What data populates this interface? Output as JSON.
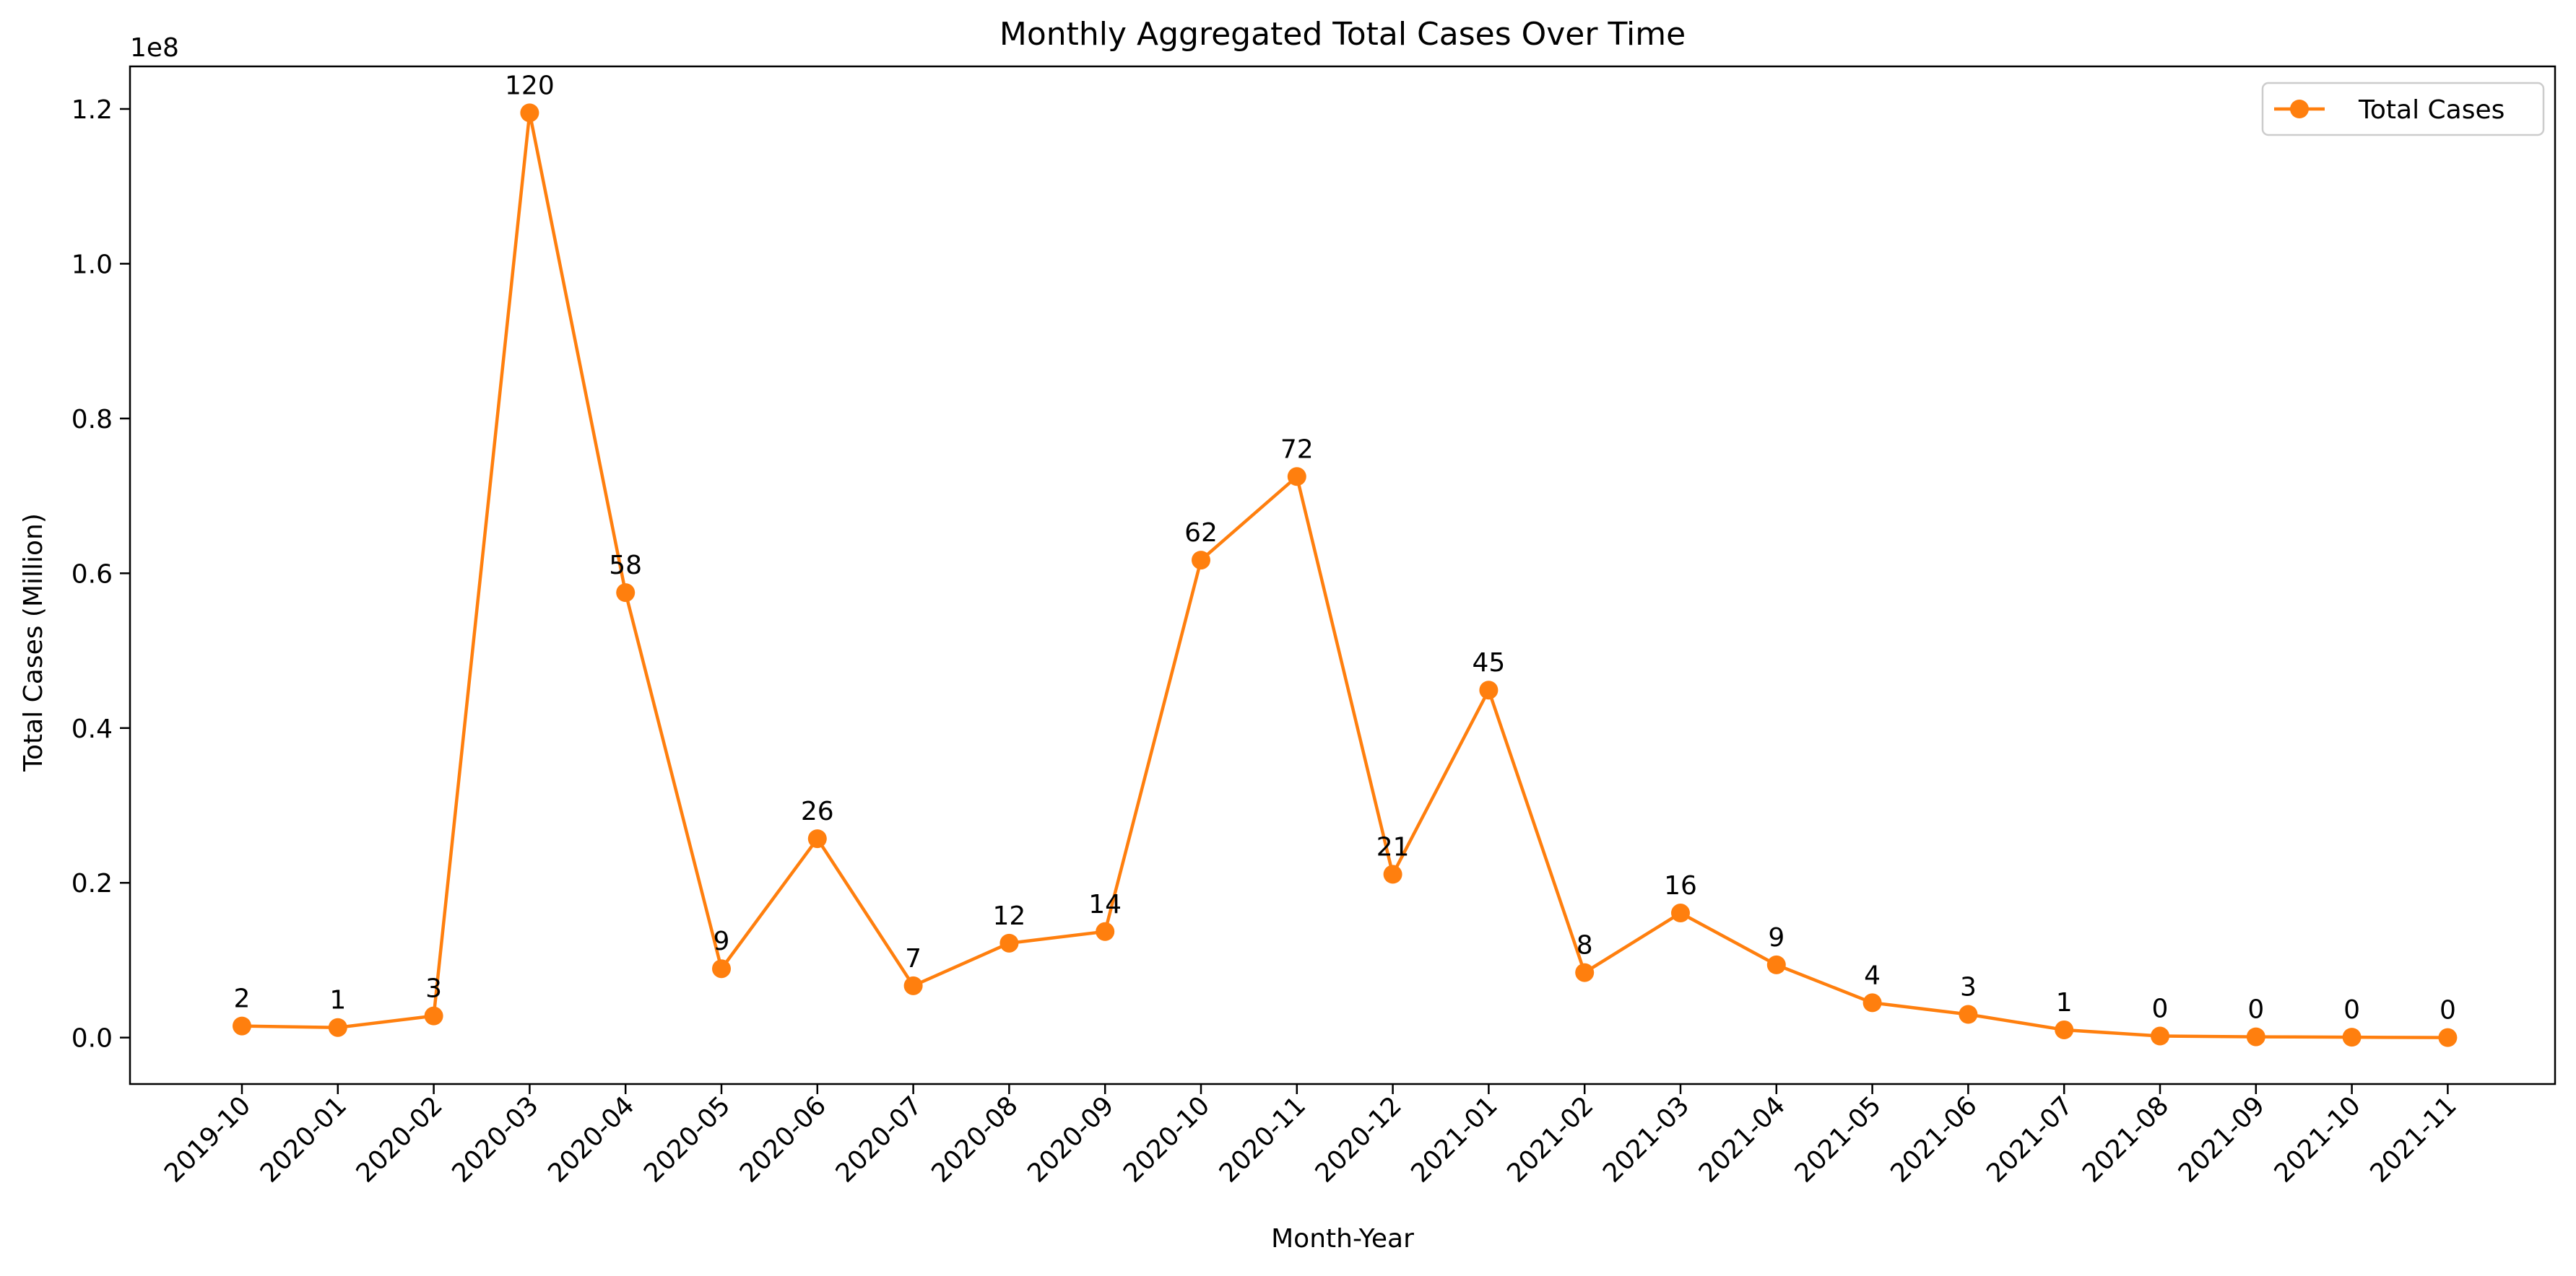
{
  "chart_data": {
    "type": "line",
    "title": "Monthly Aggregated Total Cases Over Time",
    "xlabel": "Month-Year",
    "ylabel": "Total Cases (Million)",
    "y_offset_label": "1e8",
    "categories": [
      "2019-10",
      "2020-01",
      "2020-02",
      "2020-03",
      "2020-04",
      "2020-05",
      "2020-06",
      "2020-07",
      "2020-08",
      "2020-09",
      "2020-10",
      "2020-11",
      "2020-12",
      "2021-01",
      "2021-02",
      "2021-03",
      "2021-04",
      "2021-05",
      "2021-06",
      "2021-07",
      "2021-08",
      "2021-09",
      "2021-10",
      "2021-11"
    ],
    "series": [
      {
        "name": "Total Cases",
        "color": "#ff7f0e",
        "values": [
          1500000,
          1300000,
          2800000,
          119500000,
          57500000,
          8900000,
          25700000,
          6700000,
          12200000,
          13700000,
          61700000,
          72500000,
          21100000,
          44900000,
          8400000,
          16100000,
          9400000,
          4500000,
          3000000,
          1000000,
          200000,
          100000,
          50000,
          0
        ],
        "data_labels": [
          "2",
          "1",
          "3",
          "120",
          "58",
          "9",
          "26",
          "7",
          "12",
          "14",
          "62",
          "72",
          "21",
          "45",
          "8",
          "16",
          "9",
          "4",
          "3",
          "1",
          "0",
          "0",
          "0",
          "0"
        ]
      }
    ],
    "yticks": [
      0,
      20000000,
      40000000,
      60000000,
      80000000,
      100000000,
      120000000
    ],
    "ytick_labels": [
      "0.0",
      "0.2",
      "0.4",
      "0.6",
      "0.8",
      "1.0",
      "1.2"
    ],
    "ylim": [
      -6000000,
      125500000
    ],
    "grid": false,
    "legend_position": "upper right"
  }
}
